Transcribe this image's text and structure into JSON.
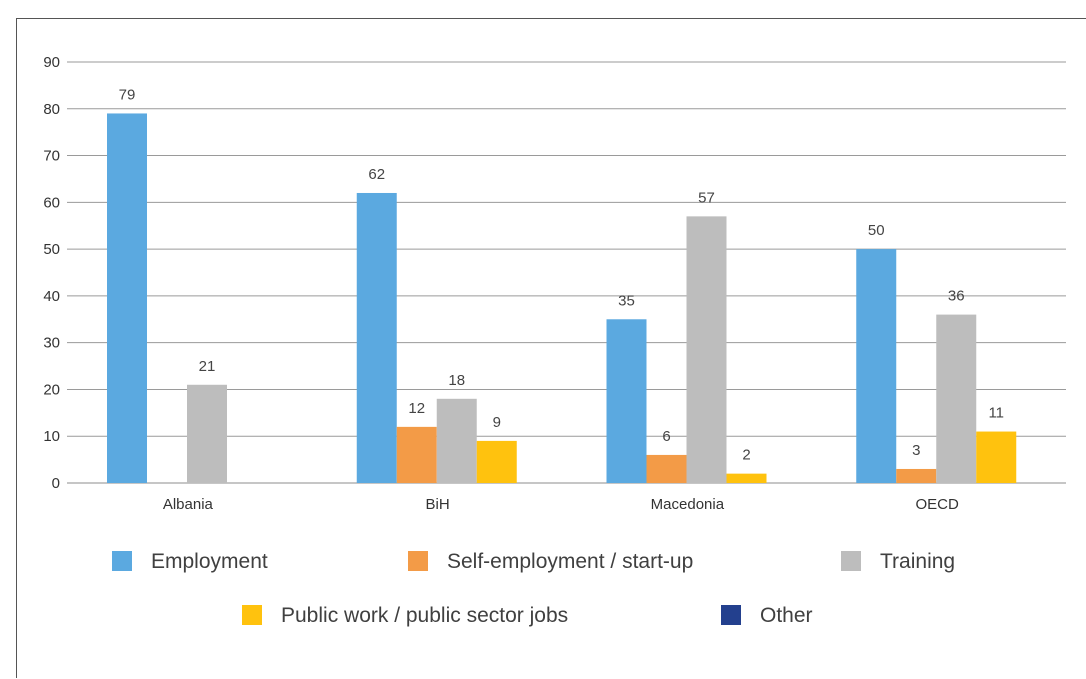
{
  "chart_data": {
    "type": "bar",
    "categories": [
      "Albania",
      "BiH",
      "Macedonia",
      "OECD"
    ],
    "series": [
      {
        "name": "Employment",
        "color": "#5BA9E0",
        "values": [
          79,
          62,
          35,
          50
        ]
      },
      {
        "name": "Self-employment / start-up",
        "color": "#F39B47",
        "values": [
          null,
          12,
          6,
          3
        ]
      },
      {
        "name": "Training",
        "color": "#BDBDBD",
        "values": [
          21,
          18,
          57,
          36
        ]
      },
      {
        "name": "Public work / public sector jobs",
        "color": "#FFC20E",
        "values": [
          null,
          9,
          2,
          11
        ]
      },
      {
        "name": "Other",
        "color": "#23408E",
        "values": [
          null,
          null,
          null,
          null
        ]
      }
    ],
    "ylim": [
      0,
      90
    ],
    "yticks": [
      0,
      10,
      20,
      30,
      40,
      50,
      60,
      70,
      80,
      90
    ],
    "grid": true,
    "legend_position": "bottom"
  }
}
